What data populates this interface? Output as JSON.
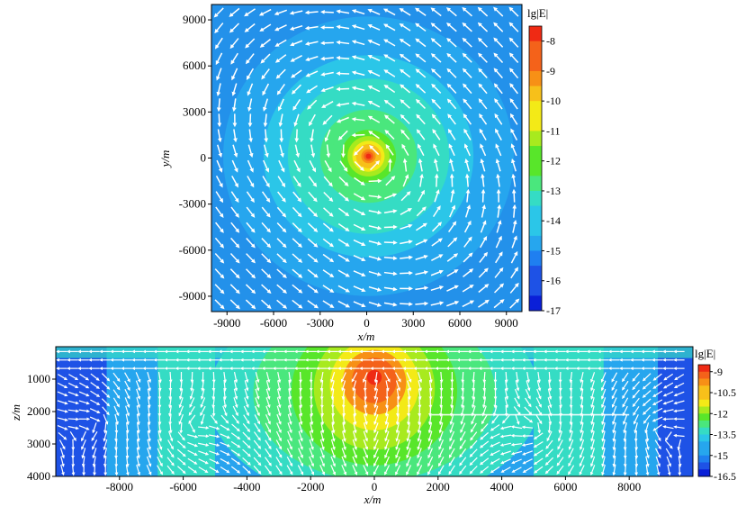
{
  "chart_data": [
    {
      "type": "heatmap",
      "plot": "top",
      "quantity": "lg|E|",
      "xlabel": "x/m",
      "ylabel": "y/m",
      "xlim": [
        -10000,
        10000
      ],
      "ylim": [
        -10000,
        10000
      ],
      "xticks": [
        -9000,
        -6000,
        -3000,
        0,
        3000,
        6000,
        9000
      ],
      "xticklabels": [
        "-9000",
        "-6000",
        "-3000",
        "0",
        "3000",
        "6000",
        "9000"
      ],
      "yticks": [
        9000,
        6000,
        3000,
        0,
        -3000,
        -6000,
        -9000
      ],
      "yticklabels": [
        "9000",
        "6000",
        "3000",
        "0",
        "-3000",
        "-6000",
        "-9000"
      ],
      "source_center": [
        0,
        0
      ],
      "field_peak": -8,
      "field_background": -14.5,
      "colorbar": {
        "label": "lg|E|",
        "range": [
          -17,
          -7.5
        ],
        "ticks": [
          -8,
          -9,
          -10,
          -11,
          -12,
          -13,
          -14,
          -15,
          -16,
          -17
        ],
        "ticklabels": [
          "-8",
          "-9",
          "-10",
          "-11",
          "-12",
          "-13",
          "-14",
          "-15",
          "-16",
          "-17"
        ]
      },
      "vectors": "circulating-about-source",
      "grid": false
    },
    {
      "type": "heatmap",
      "plot": "bottom",
      "quantity": "lg|E|",
      "xlabel": "x/m",
      "ylabel": "z/m",
      "xlim": [
        -10000,
        10000
      ],
      "ylim": [
        4000,
        0
      ],
      "xticks": [
        -8000,
        -6000,
        -4000,
        -2000,
        0,
        2000,
        4000,
        6000,
        8000
      ],
      "xticklabels": [
        "-8000",
        "-6000",
        "-4000",
        "-2000",
        "0",
        "2000",
        "4000",
        "6000",
        "8000"
      ],
      "yticks": [
        1000,
        2000,
        3000,
        4000
      ],
      "yticklabels": [
        "1000",
        "2000",
        "3000",
        "4000"
      ],
      "source_center": [
        0,
        900
      ],
      "field_peak": -8.5,
      "colorbar": {
        "label": "lg|E|",
        "range": [
          -16.5,
          -8.5
        ],
        "ticks": [
          -9,
          -10.5,
          -12,
          -13.5,
          -15,
          -16.5
        ],
        "ticklabels": [
          "-9",
          "-10.5",
          "-12",
          "-13.5",
          "-15",
          "-16.5"
        ]
      },
      "anomaly_layer": {
        "x": [
          1800,
          8000
        ],
        "z": 2100
      },
      "vectors": "horizontal-flow-with-edge-vortices",
      "grid": false
    }
  ],
  "colors": {
    "scale": [
      "#0a1fd8",
      "#1e52e6",
      "#1f7ff0",
      "#26a6ee",
      "#2bc6e8",
      "#35dcc4",
      "#4ae77d",
      "#58e62a",
      "#a8ea1e",
      "#f3ea17",
      "#f7c01a",
      "#f79016",
      "#f4621a",
      "#ef2a14"
    ],
    "arrow": "#ffffff"
  }
}
